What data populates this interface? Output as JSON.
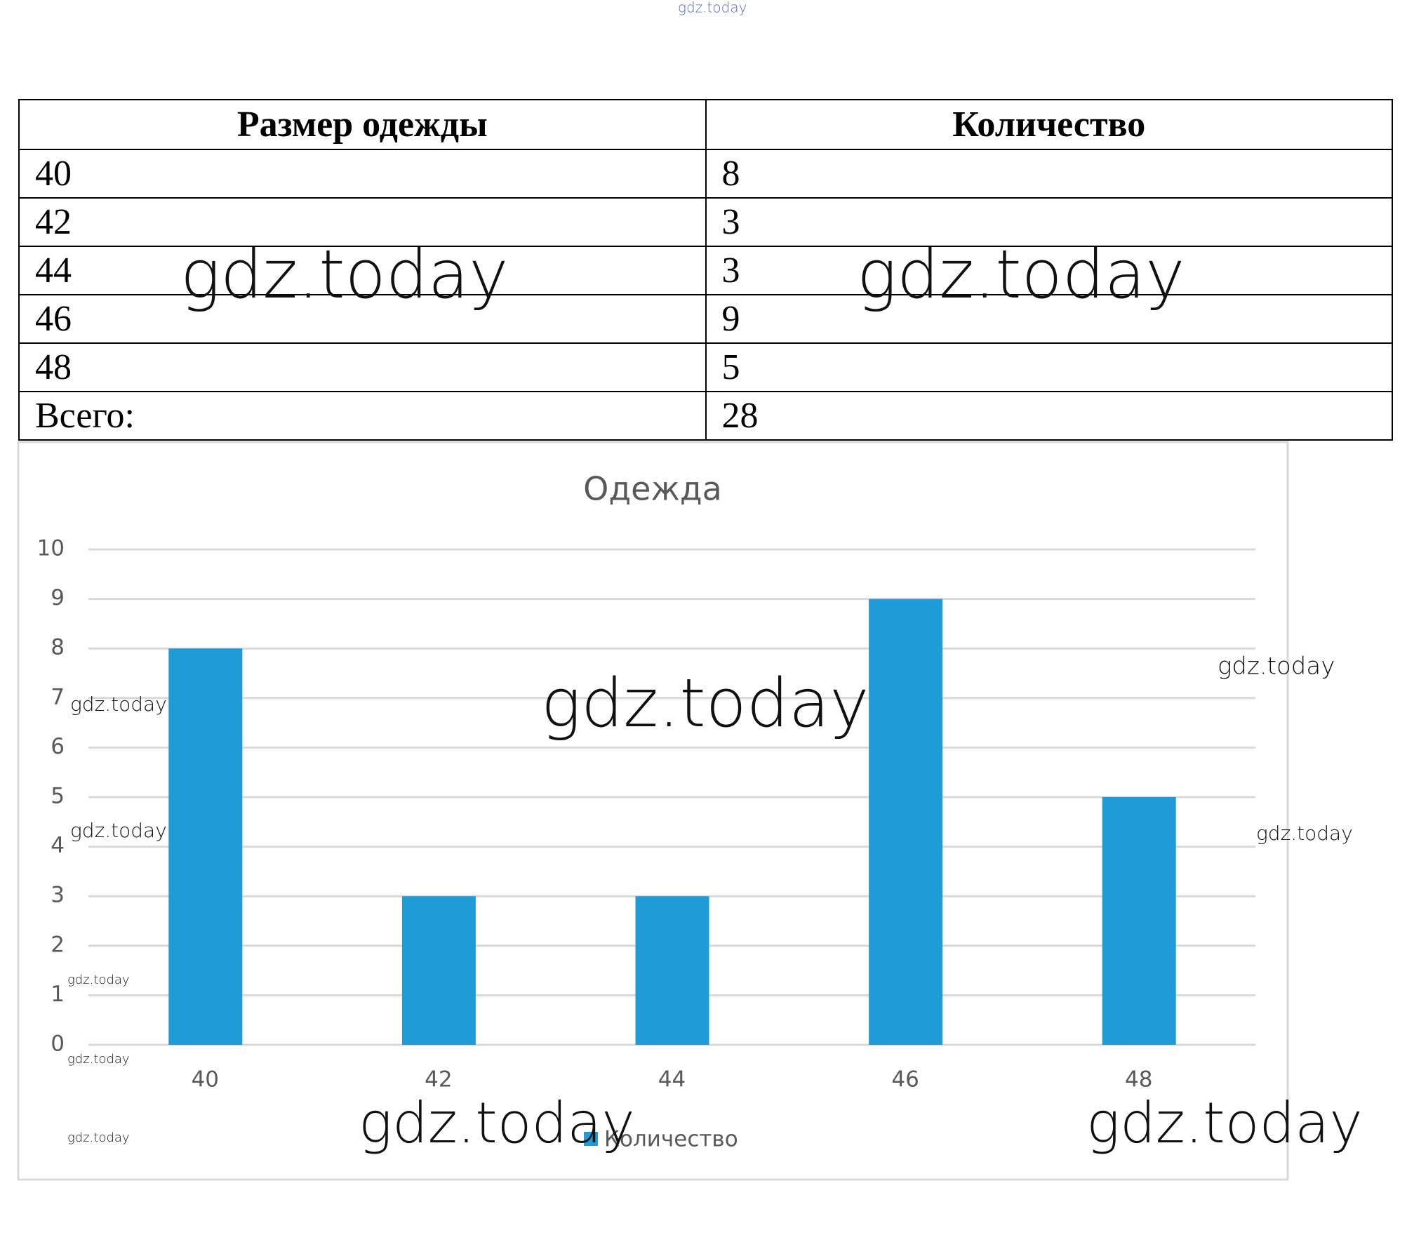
{
  "table": {
    "header": [
      "Размер одежды",
      "Количество"
    ],
    "rows": [
      [
        "40",
        "8"
      ],
      [
        "42",
        "3"
      ],
      [
        "44",
        "3"
      ],
      [
        "46",
        "9"
      ],
      [
        "48",
        "5"
      ],
      [
        "Всего:",
        "28"
      ]
    ]
  },
  "chart_data": {
    "type": "bar",
    "title": "Одежда",
    "categories": [
      "40",
      "42",
      "44",
      "46",
      "48"
    ],
    "series": [
      {
        "name": "Количество",
        "color": "#1f9bd7",
        "values": [
          8,
          3,
          3,
          9,
          5
        ]
      }
    ],
    "ylim": [
      0,
      10
    ],
    "yticks": [
      0,
      1,
      2,
      3,
      4,
      5,
      6,
      7,
      8,
      9,
      10
    ],
    "grid": true,
    "legend": "bottom"
  },
  "watermark": "gdz.today"
}
